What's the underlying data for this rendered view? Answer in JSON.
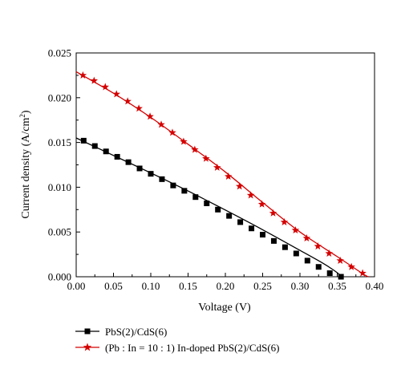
{
  "chart_data": {
    "type": "line",
    "xlabel": "Voltage (V)",
    "ylabel_main": "Current density (A/cm",
    "ylabel_sup": "2",
    "ylabel_close": ")",
    "xlim": [
      0.0,
      0.4
    ],
    "ylim": [
      0.0,
      0.025
    ],
    "xticks": [
      "0.00",
      "0.05",
      "0.10",
      "0.15",
      "0.20",
      "0.25",
      "0.30",
      "0.35",
      "0.40"
    ],
    "yticks": [
      "0.000",
      "0.005",
      "0.010",
      "0.015",
      "0.020",
      "0.025"
    ],
    "grid": false,
    "legend_position": "bottom-left, below the plot",
    "series": [
      {
        "name": "PbS(2)/CdS(6)",
        "marker": "square",
        "color": "#000000",
        "line": [
          [
            0.0,
            0.0155
          ],
          [
            0.05,
            0.01355
          ],
          [
            0.1,
            0.0116
          ],
          [
            0.15,
            0.00958
          ],
          [
            0.2,
            0.00745
          ],
          [
            0.25,
            0.00525
          ],
          [
            0.3,
            0.00295
          ],
          [
            0.33,
            0.00155
          ],
          [
            0.345,
            0.00075
          ],
          [
            0.357,
            0.0
          ]
        ],
        "x": [
          0.01,
          0.025,
          0.04,
          0.055,
          0.07,
          0.085,
          0.1,
          0.115,
          0.13,
          0.145,
          0.16,
          0.175,
          0.19,
          0.205,
          0.22,
          0.235,
          0.25,
          0.265,
          0.28,
          0.295,
          0.31,
          0.325,
          0.34,
          0.355
        ],
        "y": [
          0.0152,
          0.0146,
          0.014,
          0.0134,
          0.0128,
          0.0121,
          0.0115,
          0.0109,
          0.0102,
          0.0096,
          0.0089,
          0.0082,
          0.0075,
          0.0068,
          0.0061,
          0.0054,
          0.0047,
          0.004,
          0.0033,
          0.0026,
          0.0018,
          0.0011,
          0.0004,
          0.0
        ]
      },
      {
        "name": "(Pb : In = 10 : 1) In-doped PbS(2)/CdS(6)",
        "marker": "star",
        "color": "#d40000",
        "line": [
          [
            0.0,
            0.0229
          ],
          [
            0.05,
            0.0205
          ],
          [
            0.1,
            0.0178
          ],
          [
            0.15,
            0.0148
          ],
          [
            0.2,
            0.0117
          ],
          [
            0.25,
            0.0083
          ],
          [
            0.3,
            0.005
          ],
          [
            0.35,
            0.00225
          ],
          [
            0.385,
            0.0003
          ],
          [
            0.392,
            0.0
          ]
        ],
        "x": [
          0.009,
          0.024,
          0.039,
          0.054,
          0.069,
          0.084,
          0.099,
          0.114,
          0.129,
          0.144,
          0.159,
          0.174,
          0.189,
          0.204,
          0.219,
          0.234,
          0.249,
          0.264,
          0.279,
          0.294,
          0.309,
          0.324,
          0.339,
          0.354,
          0.369,
          0.384
        ],
        "y": [
          0.0225,
          0.0219,
          0.0212,
          0.0204,
          0.0196,
          0.0188,
          0.0179,
          0.017,
          0.0161,
          0.0151,
          0.0142,
          0.0132,
          0.0122,
          0.0112,
          0.0101,
          0.0091,
          0.0081,
          0.0071,
          0.0061,
          0.0052,
          0.0043,
          0.0034,
          0.0026,
          0.0018,
          0.0011,
          0.0004
        ]
      }
    ]
  }
}
